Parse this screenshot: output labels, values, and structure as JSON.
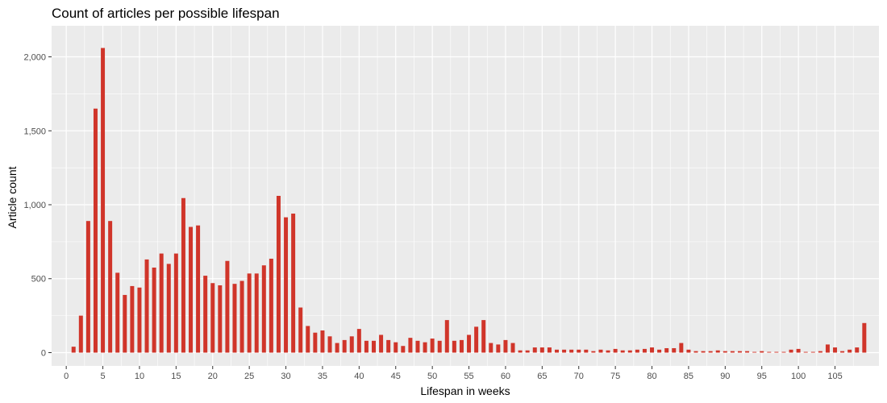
{
  "chart_data": {
    "type": "bar",
    "title": "Count of articles per possible lifespan",
    "xlabel": "Lifespan in weeks",
    "ylabel": "Article count",
    "xlim": [
      -2,
      111
    ],
    "ylim": [
      -90,
      2210
    ],
    "x_ticks": [
      0,
      5,
      10,
      15,
      20,
      25,
      30,
      35,
      40,
      45,
      50,
      55,
      60,
      65,
      70,
      75,
      80,
      85,
      90,
      95,
      100,
      105
    ],
    "y_ticks": [
      0,
      500,
      1000,
      1500,
      2000
    ],
    "y_tick_labels": [
      "0",
      "500",
      "1,000",
      "1,500",
      "2,000"
    ],
    "grid": true,
    "colors": {
      "bar": "#d0352a",
      "panel": "#ebebeb",
      "grid": "#ffffff"
    },
    "x": [
      1,
      2,
      3,
      4,
      5,
      6,
      7,
      8,
      9,
      10,
      11,
      12,
      13,
      14,
      15,
      16,
      17,
      18,
      19,
      20,
      21,
      22,
      23,
      24,
      25,
      26,
      27,
      28,
      29,
      30,
      31,
      32,
      33,
      34,
      35,
      36,
      37,
      38,
      39,
      40,
      41,
      42,
      43,
      44,
      45,
      46,
      47,
      48,
      49,
      50,
      51,
      52,
      53,
      54,
      55,
      56,
      57,
      58,
      59,
      60,
      61,
      62,
      63,
      64,
      65,
      66,
      67,
      68,
      69,
      70,
      71,
      72,
      73,
      74,
      75,
      76,
      77,
      78,
      79,
      80,
      81,
      82,
      83,
      84,
      85,
      86,
      87,
      88,
      89,
      90,
      91,
      92,
      93,
      94,
      95,
      96,
      97,
      98,
      99,
      100,
      101,
      102,
      103,
      104,
      105,
      106,
      107,
      108,
      109
    ],
    "values": [
      40,
      250,
      890,
      1650,
      2060,
      890,
      540,
      390,
      450,
      440,
      630,
      575,
      670,
      600,
      670,
      1045,
      850,
      860,
      520,
      470,
      455,
      620,
      465,
      485,
      535,
      535,
      590,
      635,
      1060,
      915,
      940,
      305,
      180,
      135,
      150,
      110,
      65,
      85,
      110,
      160,
      80,
      80,
      120,
      85,
      70,
      45,
      100,
      80,
      70,
      95,
      80,
      220,
      80,
      85,
      120,
      175,
      220,
      65,
      55,
      85,
      65,
      15,
      15,
      35,
      35,
      35,
      20,
      20,
      20,
      20,
      20,
      10,
      20,
      15,
      25,
      15,
      15,
      20,
      25,
      35,
      20,
      30,
      30,
      65,
      20,
      10,
      10,
      10,
      15,
      10,
      10,
      10,
      10,
      5,
      10,
      5,
      5,
      5,
      20,
      25,
      5,
      5,
      10,
      55,
      35,
      10,
      20,
      35,
      200
    ]
  }
}
